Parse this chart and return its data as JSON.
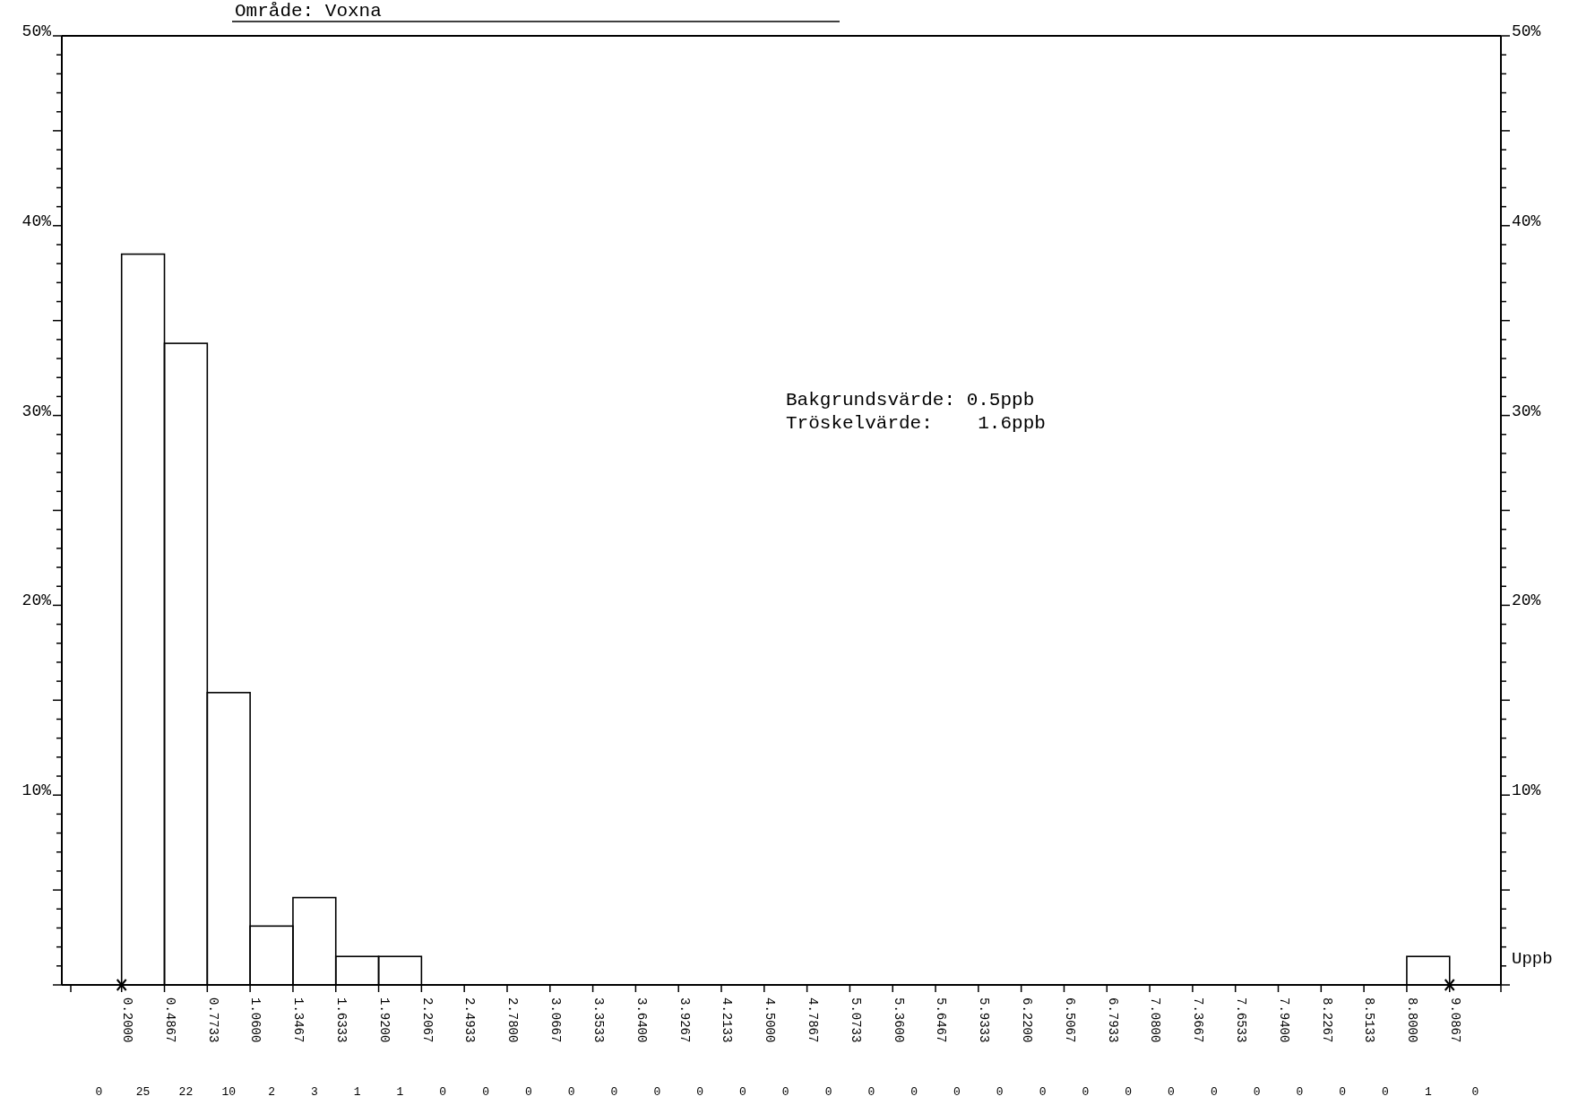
{
  "chart_data": {
    "type": "histogram",
    "title": "Område: Voxna",
    "xlabel": "Uppb",
    "bins": [
      0.2,
      0.4867,
      0.7733,
      1.06,
      1.3467,
      1.6333,
      1.92,
      2.2067,
      2.4933,
      2.78,
      3.0667,
      3.3533,
      3.64,
      3.9267,
      4.2133,
      4.5,
      4.7867,
      5.0733,
      5.36,
      5.6467,
      5.9333,
      6.22,
      6.5067,
      6.7933,
      7.08,
      7.3667,
      7.6533,
      7.94,
      8.2267,
      8.5133,
      8.8,
      9.0867
    ],
    "values": [
      38.5,
      33.8,
      15.4,
      3.1,
      4.6,
      1.5,
      1.5,
      0,
      0,
      0,
      0,
      0,
      0,
      0,
      0,
      0,
      0,
      0,
      0,
      0,
      0,
      0,
      0,
      0,
      0,
      0,
      0,
      0,
      0,
      0,
      1.5
    ],
    "color": "#000000",
    "xlim": [
      -0.2,
      9.43
    ],
    "xticks": [
      {
        "value": -0.14,
        "label": null
      },
      {
        "value": 0.2,
        "label": "0.2000"
      },
      {
        "value": 0.4867,
        "label": "0.4867"
      },
      {
        "value": 0.7733,
        "label": "0.7733"
      },
      {
        "value": 1.06,
        "label": "1.0600"
      },
      {
        "value": 1.3467,
        "label": "1.3467"
      },
      {
        "value": 1.6333,
        "label": "1.6333"
      },
      {
        "value": 1.92,
        "label": "1.9200"
      },
      {
        "value": 2.2067,
        "label": "2.2067"
      },
      {
        "value": 2.4933,
        "label": "2.4933"
      },
      {
        "value": 2.78,
        "label": "2.7800"
      },
      {
        "value": 3.0667,
        "label": "3.0667"
      },
      {
        "value": 3.3533,
        "label": "3.3533"
      },
      {
        "value": 3.64,
        "label": "3.6400"
      },
      {
        "value": 3.9267,
        "label": "3.9267"
      },
      {
        "value": 4.2133,
        "label": "4.2133"
      },
      {
        "value": 4.5,
        "label": "4.5000"
      },
      {
        "value": 4.7867,
        "label": "4.7867"
      },
      {
        "value": 5.0733,
        "label": "5.0733"
      },
      {
        "value": 5.36,
        "label": "5.3600"
      },
      {
        "value": 5.6467,
        "label": "5.6467"
      },
      {
        "value": 5.9333,
        "label": "5.9333"
      },
      {
        "value": 6.22,
        "label": "6.2200"
      },
      {
        "value": 6.5067,
        "label": "6.5067"
      },
      {
        "value": 6.7933,
        "label": "6.7933"
      },
      {
        "value": 7.08,
        "label": "7.0800"
      },
      {
        "value": 7.3667,
        "label": "7.3667"
      },
      {
        "value": 7.6533,
        "label": "7.6533"
      },
      {
        "value": 7.94,
        "label": "7.9400"
      },
      {
        "value": 8.2267,
        "label": "8.2267"
      },
      {
        "value": 8.5133,
        "label": "8.5133"
      },
      {
        "value": 8.8,
        "label": "8.8000"
      },
      {
        "value": 9.0867,
        "label": "9.0867"
      },
      {
        "value": 9.43,
        "label": null
      }
    ],
    "ylim": [
      0,
      50
    ],
    "yticks": [
      {
        "value": 0,
        "label": null
      },
      {
        "value": 1,
        "label": null
      },
      {
        "value": 2,
        "label": null
      },
      {
        "value": 3,
        "label": null
      },
      {
        "value": 4,
        "label": null
      },
      {
        "value": 5,
        "label": null
      },
      {
        "value": 6,
        "label": null
      },
      {
        "value": 7,
        "label": null
      },
      {
        "value": 8,
        "label": null
      },
      {
        "value": 9,
        "label": null
      },
      {
        "value": 10,
        "label": "10%"
      },
      {
        "value": 11,
        "label": null
      },
      {
        "value": 12,
        "label": null
      },
      {
        "value": 13,
        "label": null
      },
      {
        "value": 14,
        "label": null
      },
      {
        "value": 15,
        "label": null
      },
      {
        "value": 16,
        "label": null
      },
      {
        "value": 17,
        "label": null
      },
      {
        "value": 18,
        "label": null
      },
      {
        "value": 19,
        "label": null
      },
      {
        "value": 20,
        "label": "20%"
      },
      {
        "value": 21,
        "label": null
      },
      {
        "value": 22,
        "label": null
      },
      {
        "value": 23,
        "label": null
      },
      {
        "value": 24,
        "label": null
      },
      {
        "value": 25,
        "label": null
      },
      {
        "value": 26,
        "label": null
      },
      {
        "value": 27,
        "label": null
      },
      {
        "value": 28,
        "label": null
      },
      {
        "value": 29,
        "label": null
      },
      {
        "value": 30,
        "label": "30%"
      },
      {
        "value": 31,
        "label": null
      },
      {
        "value": 32,
        "label": null
      },
      {
        "value": 33,
        "label": null
      },
      {
        "value": 34,
        "label": null
      },
      {
        "value": 35,
        "label": null
      },
      {
        "value": 36,
        "label": null
      },
      {
        "value": 37,
        "label": null
      },
      {
        "value": 38,
        "label": null
      },
      {
        "value": 39,
        "label": null
      },
      {
        "value": 40,
        "label": "40%"
      },
      {
        "value": 41,
        "label": null
      },
      {
        "value": 42,
        "label": null
      },
      {
        "value": 43,
        "label": null
      },
      {
        "value": 44,
        "label": null
      },
      {
        "value": 45,
        "label": null
      },
      {
        "value": 46,
        "label": null
      },
      {
        "value": 47,
        "label": null
      },
      {
        "value": 48,
        "label": null
      },
      {
        "value": 49,
        "label": null
      },
      {
        "value": 50,
        "label": "50%"
      }
    ],
    "y2lim": [
      0,
      50
    ],
    "y2ticks": [
      {
        "value": 0,
        "label": null
      },
      {
        "value": 1,
        "label": null
      },
      {
        "value": 2,
        "label": null
      },
      {
        "value": 3,
        "label": null
      },
      {
        "value": 4,
        "label": null
      },
      {
        "value": 5,
        "label": null
      },
      {
        "value": 6,
        "label": null
      },
      {
        "value": 7,
        "label": null
      },
      {
        "value": 8,
        "label": null
      },
      {
        "value": 9,
        "label": null
      },
      {
        "value": 10,
        "label": "10%"
      },
      {
        "value": 11,
        "label": null
      },
      {
        "value": 12,
        "label": null
      },
      {
        "value": 13,
        "label": null
      },
      {
        "value": 14,
        "label": null
      },
      {
        "value": 15,
        "label": null
      },
      {
        "value": 16,
        "label": null
      },
      {
        "value": 17,
        "label": null
      },
      {
        "value": 18,
        "label": null
      },
      {
        "value": 19,
        "label": null
      },
      {
        "value": 20,
        "label": "20%"
      },
      {
        "value": 21,
        "label": null
      },
      {
        "value": 22,
        "label": null
      },
      {
        "value": 23,
        "label": null
      },
      {
        "value": 24,
        "label": null
      },
      {
        "value": 25,
        "label": null
      },
      {
        "value": 26,
        "label": null
      },
      {
        "value": 27,
        "label": null
      },
      {
        "value": 28,
        "label": null
      },
      {
        "value": 29,
        "label": null
      },
      {
        "value": 30,
        "label": "30%"
      },
      {
        "value": 31,
        "label": null
      },
      {
        "value": 32,
        "label": null
      },
      {
        "value": 33,
        "label": null
      },
      {
        "value": 34,
        "label": null
      },
      {
        "value": 35,
        "label": null
      },
      {
        "value": 36,
        "label": null
      },
      {
        "value": 37,
        "label": null
      },
      {
        "value": 38,
        "label": null
      },
      {
        "value": 39,
        "label": null
      },
      {
        "value": 40,
        "label": "40%"
      },
      {
        "value": 41,
        "label": null
      },
      {
        "value": 42,
        "label": null
      },
      {
        "value": 43,
        "label": null
      },
      {
        "value": 44,
        "label": null
      },
      {
        "value": 45,
        "label": null
      },
      {
        "value": 46,
        "label": null
      },
      {
        "value": 47,
        "label": null
      },
      {
        "value": 48,
        "label": null
      },
      {
        "value": 49,
        "label": null
      },
      {
        "value": 50,
        "label": "50%"
      }
    ],
    "annotations": [
      "Bakgrundsvärde: 0.5ppb",
      "Tröskelvärde:    1.6ppb",
      "0",
      "25",
      "22",
      "10",
      "2",
      "3",
      "1",
      "1",
      "0",
      "0",
      "0",
      "0",
      "0",
      "0",
      "0",
      "0",
      "0",
      "0",
      "0",
      "0",
      "0",
      "0",
      "0",
      "0",
      "0",
      "0",
      "0",
      "0",
      "0",
      "0",
      "0",
      "1",
      "0"
    ]
  }
}
